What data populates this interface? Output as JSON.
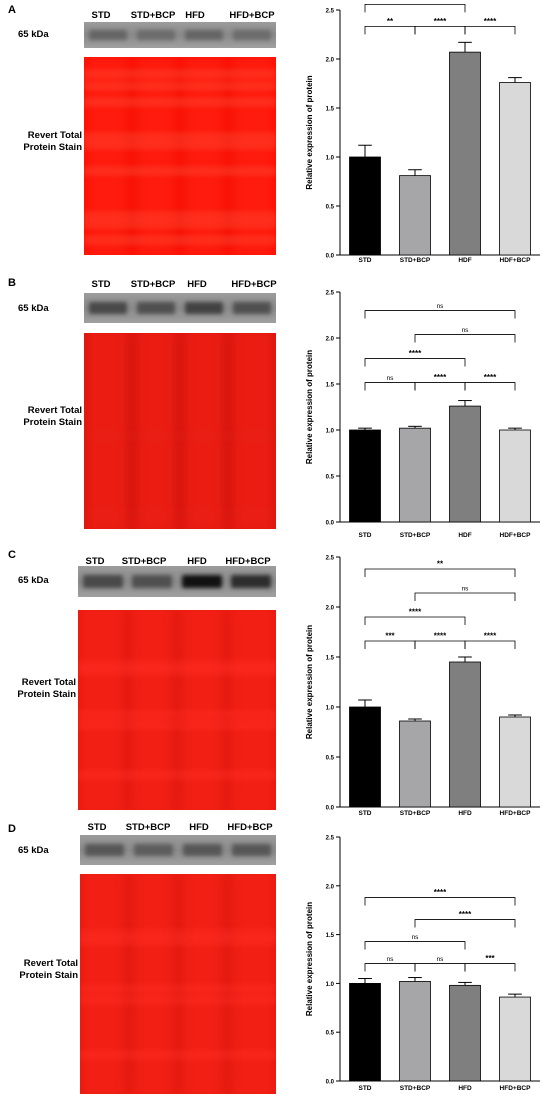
{
  "figure": {
    "common": {
      "kda_label": "65 kDa",
      "stain_label_line1": "Revert Total",
      "stain_label_line2": "Protein Stain",
      "ylabel": "Relative expression of protein"
    },
    "colors": {
      "bar_std": "#000000",
      "bar_std_bcp": "#a6a6a8",
      "bar_hfd": "#7f7f7f",
      "bar_hfd_bcp": "#d9d9d9",
      "stain_red": "#ff1a10"
    },
    "panels": [
      {
        "label": "A",
        "lanes": [
          "STD",
          "STD+BCP",
          "HFD",
          "HFD+BCP"
        ],
        "band_darkness": [
          0.35,
          0.3,
          0.35,
          0.3
        ],
        "stain_intensity": "bright",
        "chart_data": {
          "type": "bar",
          "categories": [
            "STD",
            "STD+BCP",
            "HDF",
            "HDF+BCP"
          ],
          "values": [
            1.0,
            0.81,
            2.07,
            1.76
          ],
          "errors": [
            0.12,
            0.06,
            0.1,
            0.05
          ],
          "ylabel": "Relative expression of protein",
          "ylim": [
            0,
            2.5
          ],
          "yticks": [
            "0.0",
            "0.5",
            "1.0",
            "1.5",
            "2.0",
            "2.5"
          ],
          "comparisons": [
            {
              "from": 0,
              "to": 1,
              "label": "**"
            },
            {
              "from": 1,
              "to": 2,
              "label": "****"
            },
            {
              "from": 2,
              "to": 3,
              "label": "****"
            },
            {
              "from": 0,
              "to": 2,
              "label": "****"
            },
            {
              "from": 1,
              "to": 3,
              "label": "****"
            },
            {
              "from": 0,
              "to": 3,
              "label": "****"
            }
          ]
        }
      },
      {
        "label": "B",
        "lanes": [
          "STD",
          "STD+BCP",
          "HFD",
          "HFD+BCP"
        ],
        "band_darkness": [
          0.55,
          0.5,
          0.6,
          0.5
        ],
        "stain_intensity": "dim",
        "chart_data": {
          "type": "bar",
          "categories": [
            "STD",
            "STD+BCP",
            "HDF",
            "HDF+BCP"
          ],
          "values": [
            1.0,
            1.02,
            1.26,
            1.0
          ],
          "errors": [
            0.02,
            0.02,
            0.06,
            0.02
          ],
          "ylabel": "Relative expression of protein",
          "ylim": [
            0,
            2.5
          ],
          "yticks": [
            "0.0",
            "0.5",
            "1.0",
            "1.5",
            "2.0",
            "2.5"
          ],
          "comparisons": [
            {
              "from": 0,
              "to": 1,
              "label": "ns"
            },
            {
              "from": 1,
              "to": 2,
              "label": "****"
            },
            {
              "from": 2,
              "to": 3,
              "label": "****"
            },
            {
              "from": 0,
              "to": 2,
              "label": "****"
            },
            {
              "from": 1,
              "to": 3,
              "label": "ns"
            },
            {
              "from": 0,
              "to": 3,
              "label": "ns"
            }
          ]
        }
      },
      {
        "label": "C",
        "lanes": [
          "STD",
          "STD+BCP",
          "HFD",
          "HFD+BCP"
        ],
        "band_darkness": [
          0.55,
          0.5,
          0.95,
          0.75
        ],
        "stain_intensity": "medium",
        "chart_data": {
          "type": "bar",
          "categories": [
            "STD",
            "STD+BCP",
            "HFD",
            "HFD+BCP"
          ],
          "values": [
            1.0,
            0.86,
            1.45,
            0.9
          ],
          "errors": [
            0.07,
            0.02,
            0.05,
            0.02
          ],
          "ylabel": "Relative expression of protein",
          "ylim": [
            0,
            2.5
          ],
          "yticks": [
            "0.0",
            "0.5",
            "1.0",
            "1.5",
            "2.0",
            "2.5"
          ],
          "comparisons": [
            {
              "from": 0,
              "to": 1,
              "label": "***"
            },
            {
              "from": 1,
              "to": 2,
              "label": "****"
            },
            {
              "from": 2,
              "to": 3,
              "label": "****"
            },
            {
              "from": 0,
              "to": 2,
              "label": "****"
            },
            {
              "from": 1,
              "to": 3,
              "label": "ns"
            },
            {
              "from": 0,
              "to": 3,
              "label": "**"
            }
          ]
        }
      },
      {
        "label": "D",
        "lanes": [
          "STD",
          "STD+BCP",
          "HFD",
          "HFD+BCP"
        ],
        "band_darkness": [
          0.45,
          0.4,
          0.45,
          0.45
        ],
        "stain_intensity": "medium",
        "chart_data": {
          "type": "bar",
          "categories": [
            "STD",
            "STD+BCP",
            "HFD",
            "HFD+BCP"
          ],
          "values": [
            1.0,
            1.02,
            0.98,
            0.86
          ],
          "errors": [
            0.05,
            0.04,
            0.03,
            0.03
          ],
          "ylabel": "Relative expression of protein",
          "ylim": [
            0,
            2.5
          ],
          "yticks": [
            "0.0",
            "0.5",
            "1.0",
            "1.5",
            "2.0",
            "2.5"
          ],
          "comparisons": [
            {
              "from": 0,
              "to": 1,
              "label": "ns"
            },
            {
              "from": 1,
              "to": 2,
              "label": "ns"
            },
            {
              "from": 2,
              "to": 3,
              "label": "***"
            },
            {
              "from": 0,
              "to": 2,
              "label": "ns"
            },
            {
              "from": 1,
              "to": 3,
              "label": "****"
            },
            {
              "from": 0,
              "to": 3,
              "label": "****"
            }
          ]
        }
      }
    ]
  }
}
